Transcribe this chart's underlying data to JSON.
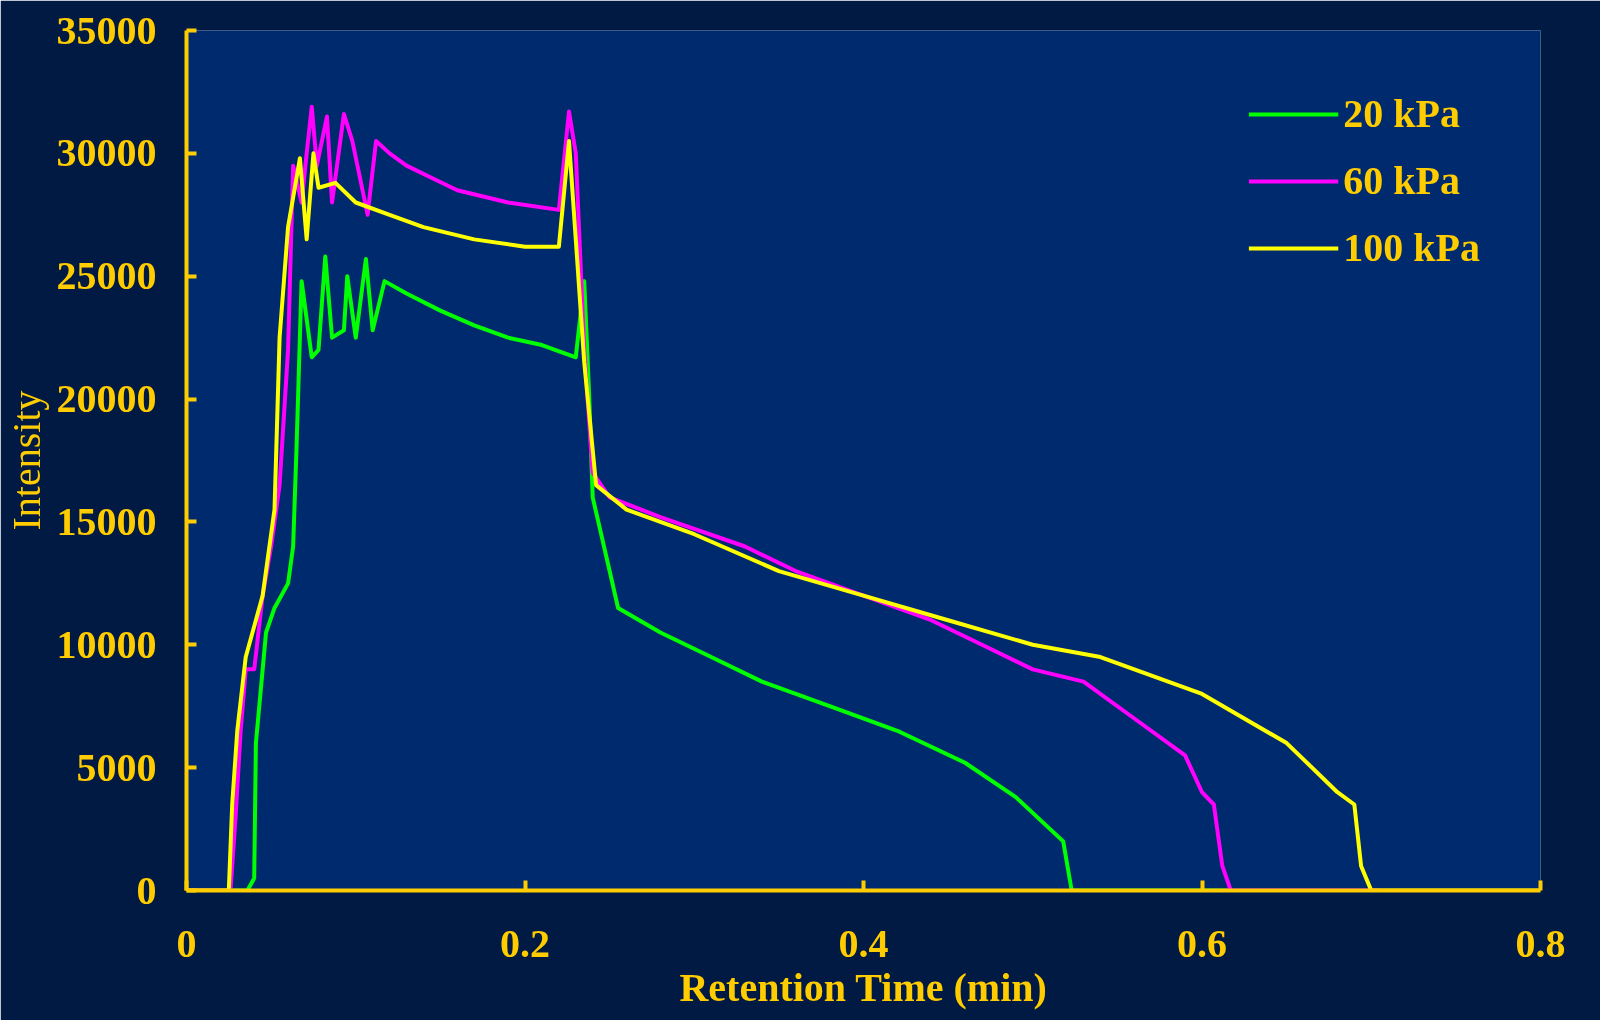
{
  "chart_data": {
    "type": "line",
    "xlabel": "Retention Time (min)",
    "ylabel": "Intensity",
    "xlim": [
      0,
      0.8
    ],
    "xticks": [
      0,
      0.2,
      0.4,
      0.6,
      0.8
    ],
    "ylim": [
      0,
      35000
    ],
    "yticks": [
      0,
      5000,
      10000,
      15000,
      20000,
      25000,
      30000,
      35000
    ],
    "grid": false,
    "legend": "top right",
    "marker": "none",
    "line_style": "solid",
    "series": [
      {
        "name": "20 kPa",
        "color": "#00ff00",
        "x": [
          0,
          0.036,
          0.04,
          0.041,
          0.043,
          0.047,
          0.052,
          0.06,
          0.063,
          0.065,
          0.068,
          0.074,
          0.078,
          0.082,
          0.086,
          0.093,
          0.095,
          0.1,
          0.106,
          0.11,
          0.117,
          0.13,
          0.15,
          0.17,
          0.19,
          0.21,
          0.23,
          0.235,
          0.238,
          0.24,
          0.25,
          0.255,
          0.28,
          0.31,
          0.34,
          0.38,
          0.42,
          0.46,
          0.49,
          0.518,
          0.523,
          0.615
        ],
        "values": [
          0,
          0,
          500,
          6000,
          7500,
          10500,
          11500,
          12500,
          14000,
          18000,
          24800,
          21700,
          22000,
          25800,
          22500,
          22800,
          25000,
          22500,
          25700,
          22800,
          24800,
          24300,
          23600,
          23000,
          22500,
          22200,
          21700,
          24800,
          20000,
          16000,
          13000,
          11500,
          10500,
          9500,
          8500,
          7500,
          6500,
          5200,
          3800,
          2000,
          0,
          0
        ]
      },
      {
        "name": "60 kPa",
        "color": "#ff00ff",
        "x": [
          0,
          0.026,
          0.029,
          0.032,
          0.035,
          0.04,
          0.045,
          0.05,
          0.055,
          0.06,
          0.063,
          0.068,
          0.071,
          0.074,
          0.077,
          0.083,
          0.086,
          0.093,
          0.098,
          0.104,
          0.107,
          0.112,
          0.12,
          0.13,
          0.145,
          0.16,
          0.19,
          0.22,
          0.226,
          0.23,
          0.235,
          0.24,
          0.25,
          0.28,
          0.33,
          0.36,
          0.4,
          0.44,
          0.47,
          0.5,
          0.53,
          0.56,
          0.59,
          0.6,
          0.607,
          0.612,
          0.617,
          0.705
        ],
        "values": [
          0,
          0,
          3000,
          6500,
          9000,
          9000,
          12000,
          14000,
          16500,
          22000,
          29500,
          28000,
          30000,
          31900,
          29500,
          31500,
          28000,
          31600,
          30500,
          28500,
          27500,
          30500,
          30000,
          29500,
          29000,
          28500,
          28000,
          27700,
          31700,
          30000,
          22000,
          17000,
          16000,
          15200,
          14000,
          13000,
          12000,
          11000,
          10000,
          9000,
          8500,
          7000,
          5500,
          4000,
          3500,
          1000,
          0,
          0
        ]
      },
      {
        "name": "100 kPa",
        "color": "#ffff00",
        "x": [
          0,
          0.025,
          0.027,
          0.03,
          0.035,
          0.045,
          0.052,
          0.055,
          0.06,
          0.067,
          0.071,
          0.075,
          0.078,
          0.088,
          0.1,
          0.12,
          0.14,
          0.17,
          0.2,
          0.22,
          0.226,
          0.235,
          0.242,
          0.26,
          0.3,
          0.35,
          0.4,
          0.45,
          0.5,
          0.54,
          0.6,
          0.65,
          0.68,
          0.69,
          0.694,
          0.7,
          0.8
        ],
        "values": [
          0,
          0,
          3500,
          6500,
          9500,
          12000,
          15500,
          22500,
          27000,
          29800,
          26500,
          30000,
          28600,
          28800,
          28000,
          27500,
          27000,
          26500,
          26200,
          26200,
          30500,
          21500,
          16500,
          15500,
          14500,
          13000,
          12000,
          11000,
          10000,
          9500,
          8000,
          6000,
          4000,
          3500,
          1000,
          0,
          0
        ]
      }
    ]
  }
}
